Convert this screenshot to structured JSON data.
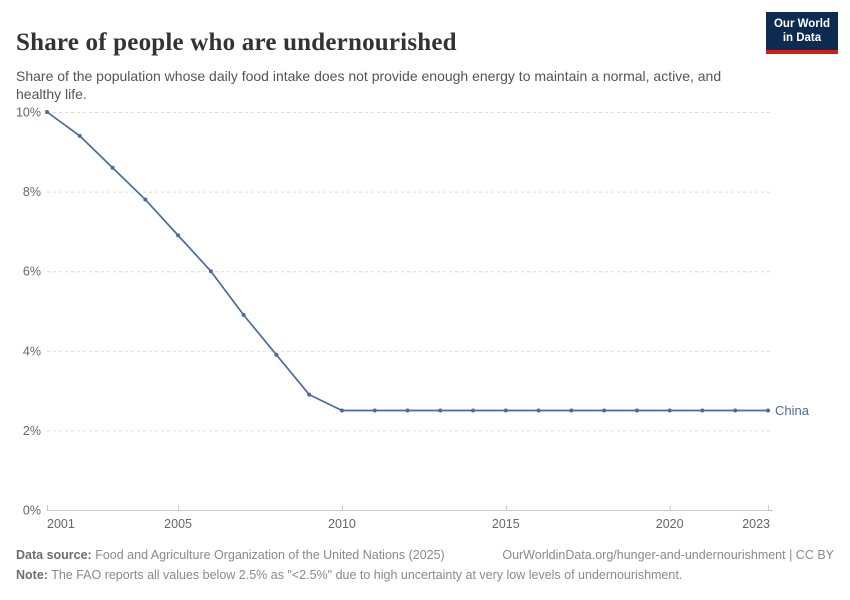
{
  "header": {
    "title": "Share of people who are undernourished",
    "subtitle": "Share of the population whose daily food intake does not provide enough energy to maintain a normal, active, and healthy life.",
    "logo": {
      "line1": "Our World",
      "line2": "in Data"
    }
  },
  "chart_data": {
    "type": "line",
    "title": "Share of people who are undernourished",
    "x": [
      2001,
      2002,
      2003,
      2004,
      2005,
      2006,
      2007,
      2008,
      2009,
      2010,
      2011,
      2012,
      2013,
      2014,
      2015,
      2016,
      2017,
      2018,
      2019,
      2020,
      2021,
      2022,
      2023
    ],
    "series": [
      {
        "name": "China",
        "color": "#4C6A9C",
        "values": [
          10.0,
          9.4,
          8.6,
          7.8,
          6.9,
          6.0,
          4.9,
          3.9,
          2.9,
          2.5,
          2.5,
          2.5,
          2.5,
          2.5,
          2.5,
          2.5,
          2.5,
          2.5,
          2.5,
          2.5,
          2.5,
          2.5,
          2.5
        ]
      }
    ],
    "xlabel": "",
    "ylabel": "",
    "xlim": [
      2001,
      2023
    ],
    "ylim": [
      0,
      10
    ],
    "xticks": [
      2001,
      2005,
      2010,
      2015,
      2020,
      2023
    ],
    "yticks": [
      0,
      2,
      4,
      6,
      8,
      10
    ],
    "ytick_suffix": "%",
    "grid": true,
    "legend_position": "end-of-line",
    "entity_label": "China"
  },
  "footer": {
    "datasource_label": "Data source:",
    "datasource_text": " Food and Agriculture Organization of the United Nations (2025)",
    "link": "OurWorldinData.org/hunger-and-undernourishment | CC BY",
    "note_label": "Note:",
    "note_text": " The FAO reports all values below 2.5% as \"<2.5%\" due to high uncertainty at very low levels of undernourishment."
  },
  "colors": {
    "line": "#4C6A9C",
    "grid": "#dcdcdc",
    "axis": "#c8c8c8",
    "tick_text": "#666666",
    "logo_bg": "#0d2b50",
    "logo_red": "#cf2018"
  }
}
